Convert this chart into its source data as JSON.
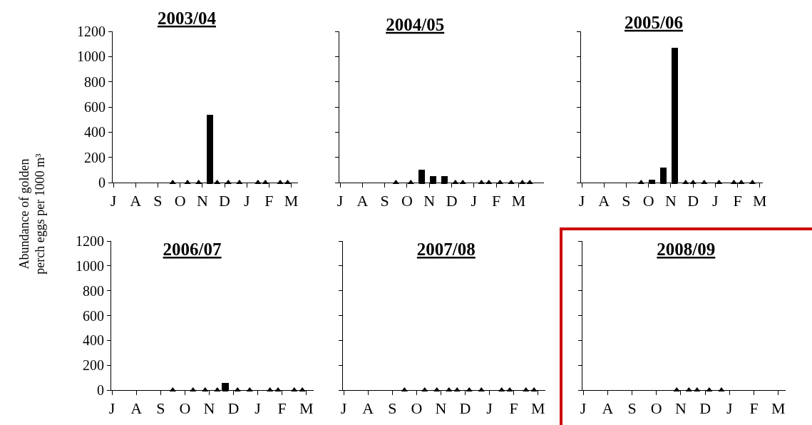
{
  "chart_data": [
    {
      "type": "bar",
      "title": "2003/04",
      "ylabel": "Abundance of golden\nperch eggs per 1000 m³",
      "categories": [
        "J",
        null,
        null,
        null,
        null,
        null,
        "A",
        null,
        null,
        null,
        null,
        null,
        "S",
        null,
        null,
        null,
        null,
        null,
        "O",
        null,
        null,
        null,
        null,
        null,
        "N",
        null,
        null,
        null,
        null,
        null,
        "D",
        null,
        null,
        null,
        null,
        null,
        "J",
        null,
        null,
        null,
        null,
        null,
        "F",
        null,
        null,
        null,
        null,
        null,
        "M",
        null
      ],
      "ylim": [
        0,
        1200
      ],
      "yticks": [
        0,
        200,
        400,
        600,
        800,
        1000,
        1200
      ],
      "grid": false,
      "series": [
        {
          "color": "#000000",
          "values": [
            null,
            null,
            null,
            null,
            null,
            null,
            null,
            null,
            null,
            null,
            null,
            null,
            null,
            null,
            null,
            null,
            null,
            null,
            null,
            null,
            null,
            null,
            null,
            null,
            null,
            null,
            540,
            null,
            null,
            null,
            null,
            null,
            null,
            null,
            null,
            null,
            null,
            null,
            null,
            null,
            null,
            null,
            null,
            null,
            null,
            null,
            null,
            null,
            null,
            null
          ]
        },
        {
          "type": "scatter",
          "marker": "triangle",
          "color": "#000000",
          "values": [
            null,
            null,
            null,
            null,
            null,
            null,
            null,
            null,
            null,
            null,
            null,
            null,
            null,
            null,
            null,
            null,
            0,
            null,
            null,
            null,
            0,
            null,
            null,
            0,
            null,
            null,
            0,
            null,
            0,
            null,
            null,
            0,
            null,
            null,
            0,
            null,
            null,
            null,
            null,
            0,
            null,
            0,
            null,
            null,
            null,
            0,
            null,
            0,
            null,
            null
          ]
        }
      ]
    },
    {
      "type": "bar",
      "title": "2004/05",
      "tick_labels": "x",
      "categories": [
        "J",
        null,
        null,
        null,
        null,
        null,
        "A",
        null,
        null,
        null,
        null,
        null,
        "S",
        null,
        null,
        null,
        null,
        null,
        "O",
        null,
        null,
        null,
        null,
        null,
        "N",
        null,
        null,
        null,
        null,
        null,
        "D",
        null,
        null,
        null,
        null,
        null,
        "J",
        null,
        null,
        null,
        null,
        null,
        "F",
        null,
        null,
        null,
        null,
        null,
        "M",
        null,
        null,
        null,
        null,
        null,
        null
      ],
      "ylim": [
        0,
        1200
      ],
      "yticks": [
        0,
        200,
        400,
        600,
        800,
        1000,
        1200
      ],
      "grid": false,
      "series": [
        {
          "color": "#000000",
          "values": [
            null,
            null,
            null,
            null,
            null,
            null,
            null,
            null,
            null,
            null,
            null,
            null,
            null,
            null,
            null,
            null,
            null,
            null,
            null,
            null,
            null,
            null,
            100,
            null,
            null,
            50,
            null,
            null,
            50,
            null,
            null,
            null,
            null,
            null,
            null,
            null,
            null,
            null,
            null,
            null,
            null,
            null,
            null,
            null,
            null,
            null,
            null,
            null,
            null,
            null,
            null,
            null,
            null,
            null,
            null
          ]
        },
        {
          "type": "scatter",
          "marker": "triangle",
          "color": "#000000",
          "values": [
            null,
            null,
            null,
            null,
            null,
            null,
            null,
            null,
            null,
            null,
            null,
            null,
            null,
            null,
            null,
            0,
            null,
            null,
            null,
            0,
            null,
            null,
            0,
            null,
            null,
            0,
            null,
            null,
            0,
            null,
            null,
            0,
            null,
            0,
            null,
            null,
            null,
            null,
            0,
            null,
            0,
            null,
            null,
            0,
            null,
            null,
            0,
            null,
            null,
            0,
            null,
            0,
            null,
            null,
            null
          ]
        }
      ]
    },
    {
      "type": "bar",
      "title": "2005/06",
      "tick_labels": "x",
      "categories": [
        "J",
        null,
        null,
        null,
        null,
        null,
        "A",
        null,
        null,
        null,
        null,
        null,
        "S",
        null,
        null,
        null,
        null,
        null,
        "O",
        null,
        null,
        null,
        null,
        null,
        "N",
        null,
        null,
        null,
        null,
        null,
        "D",
        null,
        null,
        null,
        null,
        null,
        "J",
        null,
        null,
        null,
        null,
        null,
        "F",
        null,
        null,
        null,
        null,
        null,
        "M"
      ],
      "ylim": [
        0,
        1200
      ],
      "yticks": [
        0,
        200,
        400,
        600,
        800,
        1000,
        1200
      ],
      "grid": false,
      "series": [
        {
          "color": "#000000",
          "values": [
            null,
            null,
            null,
            null,
            null,
            null,
            null,
            null,
            null,
            null,
            null,
            null,
            null,
            null,
            null,
            null,
            null,
            null,
            null,
            25,
            null,
            null,
            120,
            null,
            null,
            1070,
            null,
            null,
            null,
            null,
            null,
            null,
            null,
            null,
            null,
            null,
            null,
            null,
            null,
            null,
            null,
            null,
            null,
            null,
            null,
            null,
            null,
            null,
            null
          ]
        },
        {
          "type": "scatter",
          "marker": "triangle",
          "color": "#000000",
          "values": [
            null,
            null,
            null,
            null,
            null,
            null,
            null,
            null,
            null,
            null,
            null,
            null,
            null,
            null,
            null,
            null,
            0,
            null,
            null,
            0,
            null,
            null,
            0,
            null,
            null,
            0,
            null,
            null,
            0,
            null,
            0,
            null,
            null,
            0,
            null,
            null,
            null,
            0,
            null,
            null,
            null,
            0,
            null,
            0,
            null,
            null,
            0,
            null,
            null
          ]
        }
      ]
    },
    {
      "type": "bar",
      "title": "2006/07",
      "categories": [
        "J",
        null,
        null,
        null,
        null,
        null,
        "A",
        null,
        null,
        null,
        null,
        null,
        "S",
        null,
        null,
        null,
        null,
        null,
        "O",
        null,
        null,
        null,
        null,
        null,
        "N",
        null,
        null,
        null,
        null,
        null,
        "D",
        null,
        null,
        null,
        null,
        null,
        "J",
        null,
        null,
        null,
        null,
        null,
        "F",
        null,
        null,
        null,
        null,
        null,
        "M",
        null
      ],
      "ylim": [
        0,
        1200
      ],
      "yticks": [
        0,
        200,
        400,
        600,
        800,
        1000,
        1200
      ],
      "grid": false,
      "series": [
        {
          "color": "#000000",
          "values": [
            null,
            null,
            null,
            null,
            null,
            null,
            null,
            null,
            null,
            null,
            null,
            null,
            null,
            null,
            null,
            null,
            null,
            null,
            null,
            null,
            null,
            null,
            null,
            null,
            null,
            null,
            null,
            null,
            60,
            null,
            null,
            null,
            null,
            null,
            null,
            null,
            null,
            null,
            null,
            null,
            null,
            null,
            null,
            null,
            null,
            null,
            null,
            null,
            null,
            null
          ]
        },
        {
          "type": "scatter",
          "marker": "triangle",
          "color": "#000000",
          "values": [
            null,
            null,
            null,
            null,
            null,
            null,
            null,
            null,
            null,
            null,
            null,
            null,
            null,
            null,
            null,
            0,
            null,
            null,
            null,
            null,
            0,
            null,
            null,
            0,
            null,
            null,
            0,
            null,
            0,
            null,
            null,
            0,
            null,
            null,
            0,
            null,
            null,
            null,
            null,
            0,
            null,
            0,
            null,
            null,
            null,
            0,
            null,
            0,
            null,
            null
          ]
        }
      ]
    },
    {
      "type": "bar",
      "title": "2007/08",
      "tick_labels": "x",
      "categories": [
        "J",
        null,
        null,
        null,
        null,
        null,
        "A",
        null,
        null,
        null,
        null,
        null,
        "S",
        null,
        null,
        null,
        null,
        null,
        "O",
        null,
        null,
        null,
        null,
        null,
        "N",
        null,
        null,
        null,
        null,
        null,
        "D",
        null,
        null,
        null,
        null,
        null,
        "J",
        null,
        null,
        null,
        null,
        null,
        "F",
        null,
        null,
        null,
        null,
        null,
        "M",
        null
      ],
      "ylim": [
        0,
        1200
      ],
      "yticks": [
        0,
        200,
        400,
        600,
        800,
        1000,
        1200
      ],
      "grid": false,
      "series": [
        {
          "type": "scatter",
          "marker": "triangle",
          "color": "#000000",
          "values": [
            null,
            null,
            null,
            null,
            null,
            null,
            null,
            null,
            null,
            null,
            null,
            null,
            null,
            null,
            null,
            0,
            null,
            null,
            null,
            null,
            0,
            null,
            null,
            0,
            null,
            null,
            0,
            null,
            0,
            null,
            null,
            0,
            null,
            null,
            0,
            null,
            null,
            null,
            null,
            0,
            null,
            0,
            null,
            null,
            null,
            0,
            null,
            0,
            null,
            null
          ]
        }
      ]
    },
    {
      "type": "bar",
      "title": "2008/09",
      "tick_labels": "x",
      "categories": [
        "J",
        null,
        null,
        null,
        null,
        null,
        "A",
        null,
        null,
        null,
        null,
        null,
        "S",
        null,
        null,
        null,
        null,
        null,
        "O",
        null,
        null,
        null,
        null,
        null,
        "N",
        null,
        null,
        null,
        null,
        null,
        "D",
        null,
        null,
        null,
        null,
        null,
        "J",
        null,
        null,
        null,
        null,
        null,
        "F",
        null,
        null,
        null,
        null,
        null,
        "M",
        null
      ],
      "ylim": [
        0,
        1200
      ],
      "yticks": [
        0,
        200,
        400,
        600,
        800,
        1000,
        1200
      ],
      "grid": false,
      "series": [
        {
          "type": "scatter",
          "marker": "triangle",
          "color": "#000000",
          "values": [
            null,
            null,
            null,
            null,
            null,
            null,
            null,
            null,
            null,
            null,
            null,
            null,
            null,
            null,
            null,
            null,
            null,
            null,
            null,
            null,
            null,
            null,
            null,
            0,
            null,
            null,
            0,
            null,
            0,
            null,
            null,
            0,
            null,
            null,
            0,
            null,
            null,
            null,
            null,
            null,
            null,
            null,
            null,
            null,
            null,
            null,
            null,
            null,
            null,
            null
          ]
        }
      ]
    }
  ]
}
